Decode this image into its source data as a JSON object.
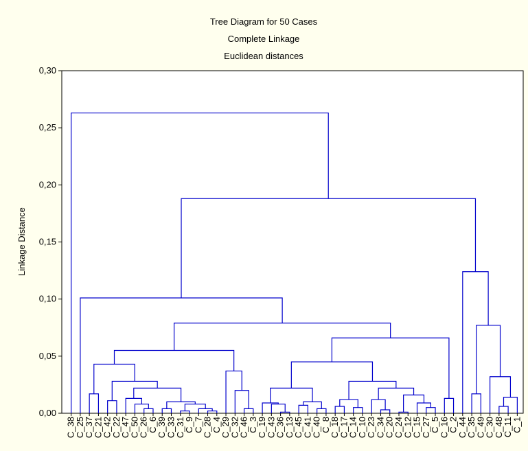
{
  "chart_data": {
    "type": "dendrogram",
    "title": "Tree Diagram for 50 Cases",
    "subtitle": "Complete Linkage",
    "subtitle2": "Euclidean distances",
    "ylabel": "Linkage Distance",
    "color": "#0000cc",
    "ylim": [
      0,
      0.3
    ],
    "yticks": [
      {
        "value": 0,
        "label": "0,00"
      },
      {
        "value": 0.05,
        "label": "0,05"
      },
      {
        "value": 0.1,
        "label": "0,10"
      },
      {
        "value": 0.15,
        "label": "0,15"
      },
      {
        "value": 0.2,
        "label": "0,20"
      },
      {
        "value": 0.25,
        "label": "0,25"
      },
      {
        "value": 0.3,
        "label": "0,30"
      }
    ],
    "categories": [
      "C_38",
      "C_25",
      "C_37",
      "C_21",
      "C_42",
      "C_22",
      "C_47",
      "C_50",
      "C_26",
      "C_6",
      "C_39",
      "C_33",
      "C_31",
      "C_9",
      "C_7",
      "C_28",
      "C_4",
      "C_29",
      "C_32",
      "C_46",
      "C_3",
      "C_19",
      "C_43",
      "C_36",
      "C_13",
      "C_45",
      "C_41",
      "C_40",
      "C_8",
      "C_18",
      "C_17",
      "C_14",
      "C_10",
      "C_23",
      "C_34",
      "C_20",
      "C_24",
      "C_12",
      "C_15",
      "C_27",
      "C_5",
      "C_16",
      "C_2",
      "C_44",
      "C_35",
      "C_49",
      "C_30",
      "C_48",
      "C_11",
      "C_1"
    ],
    "tree": {
      "height": 0.263,
      "children": [
        0,
        {
          "height": 0.188,
          "children": [
            {
              "height": 0.101,
              "children": [
                1,
                {
                  "height": 0.079,
                  "children": [
                    {
                      "height": 0.055,
                      "children": [
                        {
                          "height": 0.043,
                          "children": [
                            {
                              "height": 0.017,
                              "children": [
                                2,
                                3
                              ]
                            },
                            {
                              "height": 0.028,
                              "children": [
                                {
                                  "height": 0.011,
                                  "children": [
                                    4,
                                    5
                                  ]
                                },
                                {
                                  "height": 0.022,
                                  "children": [
                                    {
                                      "height": 0.013,
                                      "children": [
                                        6,
                                        {
                                          "height": 0.008,
                                          "children": [
                                            7,
                                            {
                                              "height": 0.004,
                                              "children": [
                                                8,
                                                9
                                              ]
                                            }
                                          ]
                                        }
                                      ]
                                    },
                                    {
                                      "height": 0.01,
                                      "children": [
                                        {
                                          "height": 0.004,
                                          "children": [
                                            10,
                                            11
                                          ]
                                        },
                                        {
                                          "height": 0.008,
                                          "children": [
                                            {
                                              "height": 0.002,
                                              "children": [
                                                12,
                                                13
                                              ]
                                            },
                                            {
                                              "height": 0.004,
                                              "children": [
                                                14,
                                                {
                                                  "height": 0.002,
                                                  "children": [
                                                    15,
                                                    16
                                                  ]
                                                }
                                              ]
                                            }
                                          ]
                                        }
                                      ]
                                    }
                                  ]
                                }
                              ]
                            }
                          ]
                        },
                        {
                          "height": 0.037,
                          "children": [
                            17,
                            {
                              "height": 0.02,
                              "children": [
                                18,
                                {
                                  "height": 0.004,
                                  "children": [
                                    19,
                                    20
                                  ]
                                }
                              ]
                            }
                          ]
                        }
                      ]
                    },
                    {
                      "height": 0.066,
                      "children": [
                        {
                          "height": 0.045,
                          "children": [
                            {
                              "height": 0.022,
                              "children": [
                                {
                                  "height": 0.009,
                                  "children": [
                                    21,
                                    {
                                      "height": 0.008,
                                      "children": [
                                        22,
                                        {
                                          "height": 0.001,
                                          "children": [
                                            23,
                                            24
                                          ]
                                        }
                                      ]
                                    }
                                  ]
                                },
                                {
                                  "height": 0.01,
                                  "children": [
                                    {
                                      "height": 0.007,
                                      "children": [
                                        25,
                                        26
                                      ]
                                    },
                                    {
                                      "height": 0.004,
                                      "children": [
                                        27,
                                        28
                                      ]
                                    }
                                  ]
                                }
                              ]
                            },
                            {
                              "height": 0.028,
                              "children": [
                                {
                                  "height": 0.012,
                                  "children": [
                                    {
                                      "height": 0.006,
                                      "children": [
                                        29,
                                        30
                                      ]
                                    },
                                    {
                                      "height": 0.005,
                                      "children": [
                                        31,
                                        32
                                      ]
                                    }
                                  ]
                                },
                                {
                                  "height": 0.022,
                                  "children": [
                                    {
                                      "height": 0.012,
                                      "children": [
                                        33,
                                        {
                                          "height": 0.003,
                                          "children": [
                                            34,
                                            35
                                          ]
                                        }
                                      ]
                                    },
                                    {
                                      "height": 0.016,
                                      "children": [
                                        {
                                          "height": 0.001,
                                          "children": [
                                            36,
                                            37
                                          ]
                                        },
                                        {
                                          "height": 0.009,
                                          "children": [
                                            38,
                                            {
                                              "height": 0.005,
                                              "children": [
                                                39,
                                                40
                                              ]
                                            }
                                          ]
                                        }
                                      ]
                                    }
                                  ]
                                }
                              ]
                            }
                          ]
                        },
                        {
                          "height": 0.013,
                          "children": [
                            41,
                            42
                          ]
                        }
                      ]
                    }
                  ]
                }
              ]
            },
            {
              "height": 0.124,
              "children": [
                43,
                {
                  "height": 0.077,
                  "children": [
                    {
                      "height": 0.017,
                      "children": [
                        44,
                        45
                      ]
                    },
                    {
                      "height": 0.032,
                      "children": [
                        46,
                        {
                          "height": 0.014,
                          "children": [
                            {
                              "height": 0.006,
                              "children": [
                                47,
                                48
                              ]
                            },
                            49
                          ]
                        }
                      ]
                    }
                  ]
                }
              ]
            }
          ]
        }
      ]
    }
  }
}
